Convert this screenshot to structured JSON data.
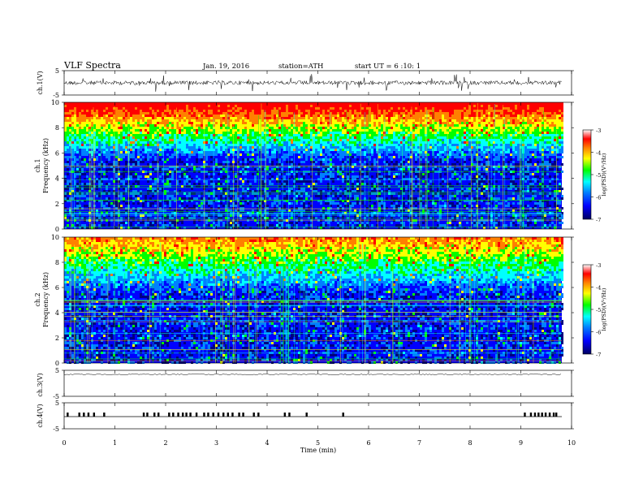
{
  "header": {
    "title": "VLF  Spectra",
    "date": "Jan. 19, 2016",
    "station": "station=ATH",
    "start": "start  UT  =   6  :10: 1"
  },
  "colors": {
    "colormap": [
      "#000080",
      "#0000ff",
      "#0080ff",
      "#00ffff",
      "#00ff00",
      "#ffff00",
      "#ff8000",
      "#ff0000",
      "#ffffff"
    ],
    "trace": "#000000",
    "axes": "#000000"
  },
  "chart_data": [
    {
      "type": "line",
      "name": "ch1-waveform",
      "ylabel": "ch.1(V)",
      "ylim": [
        -5,
        5
      ],
      "yticks": [
        "5",
        "-5"
      ],
      "xlim": [
        0,
        10
      ]
    },
    {
      "type": "heatmap",
      "name": "ch1-spectrogram",
      "ylabel_line1": "ch.1",
      "ylabel_line2": "Frequency  (kHz)",
      "ylim": [
        0,
        10
      ],
      "yticks": [
        "10",
        "8",
        "6",
        "4",
        "2",
        "0"
      ],
      "xlim": [
        0,
        10
      ],
      "colorbar": {
        "label": "log(PSD)(V²/Hz)",
        "range": [
          -7,
          -3
        ],
        "ticks": [
          "-3",
          "-4",
          "-5",
          "-6",
          "-7"
        ]
      }
    },
    {
      "type": "heatmap",
      "name": "ch2-spectrogram",
      "ylabel_line1": "ch.2",
      "ylabel_line2": "Frequency  (kHz)",
      "ylim": [
        0,
        10
      ],
      "yticks": [
        "10",
        "8",
        "6",
        "4",
        "2",
        "0"
      ],
      "xlim": [
        0,
        10
      ],
      "colorbar": {
        "label": "log(PSD)(V²/Hz)",
        "range": [
          -7,
          -3
        ],
        "ticks": [
          "-3",
          "-4",
          "-5",
          "-6",
          "-7"
        ]
      }
    },
    {
      "type": "line",
      "name": "ch3-waveform",
      "ylabel": "ch.3(V)",
      "ylim": [
        -5,
        5
      ],
      "yticks": [
        "5",
        "-5"
      ],
      "xlim": [
        0,
        10
      ]
    },
    {
      "type": "line",
      "name": "ch4-waveform",
      "ylabel": "ch.4(V)",
      "ylim": [
        -5,
        5
      ],
      "yticks": [
        "5",
        "-5"
      ],
      "xlim": [
        0,
        10
      ],
      "pulse_times_min": [
        0.05,
        0.28,
        0.37,
        0.46,
        0.57,
        0.77,
        1.55,
        1.62,
        1.76,
        1.84,
        2.05,
        2.13,
        2.23,
        2.32,
        2.39,
        2.47,
        2.59,
        2.74,
        2.82,
        2.92,
        3.02,
        3.12,
        3.21,
        3.3,
        3.43,
        3.51,
        3.72,
        3.81,
        4.33,
        4.42,
        4.76,
        5.48,
        9.06,
        9.18,
        9.26,
        9.33,
        9.4,
        9.47,
        9.55,
        9.63,
        9.68
      ]
    }
  ],
  "xaxis": {
    "label": "Time  (min)",
    "ticks": [
      "0",
      "1",
      "2",
      "3",
      "4",
      "5",
      "6",
      "7",
      "8",
      "9",
      "10"
    ],
    "range": [
      0,
      10
    ]
  }
}
